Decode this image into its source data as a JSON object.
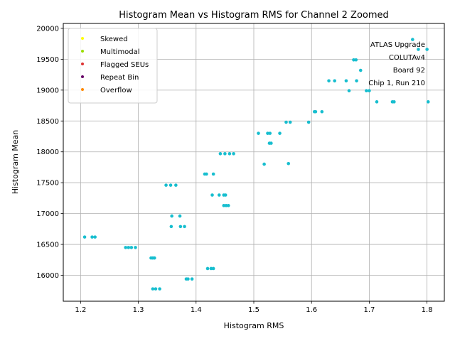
{
  "chart_data": {
    "type": "scatter",
    "title": "Histogram Mean vs Histogram RMS for Channel 2 Zoomed",
    "xlabel": "Histogram RMS",
    "ylabel": "Histogram Mean",
    "xlim": [
      1.17,
      1.83
    ],
    "ylim": [
      15580,
      20080
    ],
    "xticks": [
      "1.2",
      "1.3",
      "1.4",
      "1.5",
      "1.6",
      "1.7",
      "1.8"
    ],
    "yticks": [
      "16000",
      "16500",
      "17000",
      "17500",
      "18000",
      "18500",
      "19000",
      "19500",
      "20000"
    ],
    "grid": true,
    "legend_position": "top-left",
    "legend": [
      {
        "label": "Skewed",
        "color": "#ffff00"
      },
      {
        "label": "Multimodal",
        "color": "#99dd00"
      },
      {
        "label": "Flagged SEUs",
        "color": "#dd3333"
      },
      {
        "label": "Repeat Bin",
        "color": "#660066"
      },
      {
        "label": "Overflow",
        "color": "#ff8800"
      }
    ],
    "annotation": [
      "ATLAS Upgrade",
      "COLUTAv4",
      "Board 92",
      "Chip 1, Run 210"
    ],
    "point_color": "#17becf",
    "points": [
      [
        1.207,
        16620
      ],
      [
        1.22,
        16620
      ],
      [
        1.225,
        16620
      ],
      [
        1.278,
        16450
      ],
      [
        1.283,
        16450
      ],
      [
        1.288,
        16450
      ],
      [
        1.295,
        16450
      ],
      [
        1.322,
        16280
      ],
      [
        1.325,
        16280
      ],
      [
        1.328,
        16280
      ],
      [
        1.325,
        15780
      ],
      [
        1.33,
        15780
      ],
      [
        1.337,
        15780
      ],
      [
        1.348,
        17460
      ],
      [
        1.356,
        17460
      ],
      [
        1.365,
        17460
      ],
      [
        1.358,
        16960
      ],
      [
        1.372,
        16960
      ],
      [
        1.357,
        16790
      ],
      [
        1.373,
        16790
      ],
      [
        1.38,
        16790
      ],
      [
        1.383,
        15940
      ],
      [
        1.386,
        15940
      ],
      [
        1.393,
        15940
      ],
      [
        1.415,
        17640
      ],
      [
        1.418,
        17640
      ],
      [
        1.43,
        17640
      ],
      [
        1.42,
        16110
      ],
      [
        1.426,
        16110
      ],
      [
        1.43,
        16110
      ],
      [
        1.428,
        17300
      ],
      [
        1.44,
        17300
      ],
      [
        1.448,
        17300
      ],
      [
        1.451,
        17300
      ],
      [
        1.448,
        17130
      ],
      [
        1.452,
        17130
      ],
      [
        1.456,
        17130
      ],
      [
        1.442,
        17970
      ],
      [
        1.45,
        17970
      ],
      [
        1.458,
        17970
      ],
      [
        1.465,
        17970
      ],
      [
        1.508,
        18300
      ],
      [
        1.524,
        18300
      ],
      [
        1.528,
        18300
      ],
      [
        1.545,
        18300
      ],
      [
        1.527,
        18140
      ],
      [
        1.53,
        18140
      ],
      [
        1.518,
        17800
      ],
      [
        1.56,
        17810
      ],
      [
        1.556,
        18480
      ],
      [
        1.563,
        18480
      ],
      [
        1.595,
        18480
      ],
      [
        1.605,
        18650
      ],
      [
        1.607,
        18650
      ],
      [
        1.618,
        18650
      ],
      [
        1.63,
        19150
      ],
      [
        1.64,
        19150
      ],
      [
        1.66,
        19150
      ],
      [
        1.678,
        19150
      ],
      [
        1.665,
        18990
      ],
      [
        1.695,
        18990
      ],
      [
        1.7,
        18990
      ],
      [
        1.713,
        18810
      ],
      [
        1.74,
        18810
      ],
      [
        1.743,
        18810
      ],
      [
        1.802,
        18810
      ],
      [
        1.673,
        19490
      ],
      [
        1.677,
        19490
      ],
      [
        1.685,
        19320
      ],
      [
        1.775,
        19820
      ],
      [
        1.785,
        19660
      ],
      [
        1.8,
        19660
      ]
    ]
  }
}
